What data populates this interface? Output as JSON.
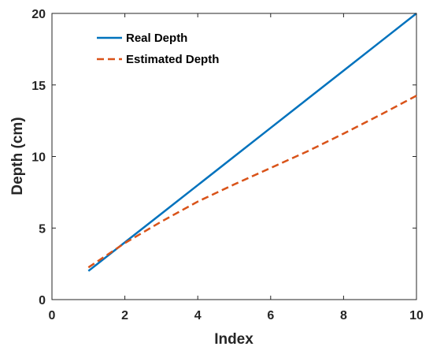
{
  "chart_data": {
    "type": "line",
    "title": "",
    "xlabel": "Index",
    "ylabel": "Depth (cm)",
    "xlim": [
      0,
      10
    ],
    "ylim": [
      0,
      20
    ],
    "xticks": [
      "0",
      "2",
      "4",
      "6",
      "8",
      "10"
    ],
    "yticks": [
      "0",
      "5",
      "10",
      "15",
      "20"
    ],
    "grid": false,
    "legend_position": "top-left",
    "x": [
      1,
      2,
      3,
      4,
      5,
      6,
      7,
      8,
      9,
      10
    ],
    "series": [
      {
        "name": "Real Depth",
        "values": [
          2,
          4,
          6,
          8,
          10,
          12,
          14,
          16,
          18,
          20
        ],
        "color": "#0072BD",
        "line_style": "solid"
      },
      {
        "name": "Estimated Depth",
        "values": [
          2.25,
          3.95,
          5.45,
          6.85,
          8.05,
          9.2,
          10.35,
          11.6,
          12.9,
          14.25
        ],
        "color": "#D95319",
        "line_style": "dashed"
      }
    ]
  }
}
